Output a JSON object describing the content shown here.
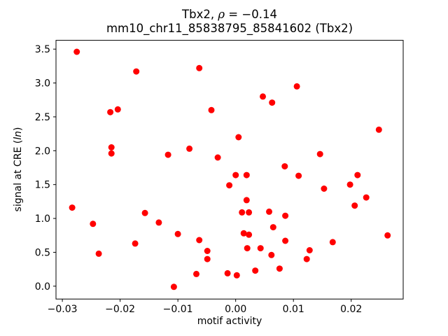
{
  "figure": {
    "title": {
      "full": "Tbx2, ρ = −0.14",
      "prefix": "Tbx2, ",
      "rho_symbol": "ρ",
      "suffix": " = −0.14",
      "subtitle": "mm10_chr11_85838795_85841602 (Tbx2)"
    },
    "x_axis": {
      "label": "motif activity",
      "tick_labels": [
        "−0.03",
        "−0.02",
        "−0.01",
        "0.00",
        "0.01",
        "0.02"
      ]
    },
    "y_axis": {
      "label_full": "signal at CRE (ln)",
      "label_prefix": "signal at CRE (",
      "label_italic": "ln",
      "label_suffix": ")",
      "tick_labels": [
        "0.0",
        "0.5",
        "1.0",
        "1.5",
        "2.0",
        "2.5",
        "3.0",
        "3.5"
      ]
    },
    "colors": {
      "marker": "#ff0000",
      "text": "#000000",
      "spine": "#000000",
      "background": "#ffffff"
    }
  },
  "chart_data": {
    "type": "scatter",
    "title": "Tbx2, ρ = −0.14",
    "subtitle": "mm10_chr11_85838795_85841602 (Tbx2)",
    "xlabel": "motif activity",
    "ylabel": "signal at CRE (ln)",
    "grid": false,
    "legend": "none",
    "marker_color": "#ff0000",
    "marker_radius_px": 4.5,
    "xlim": [
      -0.0311,
      0.029
    ],
    "ylim": [
      -0.19,
      3.63
    ],
    "x_tick_values": [
      -0.03,
      -0.02,
      -0.01,
      0.0,
      0.01,
      0.02
    ],
    "y_tick_values": [
      0.0,
      0.5,
      1.0,
      1.5,
      2.0,
      2.5,
      3.0,
      3.5
    ],
    "points": [
      [
        -0.0275,
        3.46
      ],
      [
        -0.0172,
        3.17
      ],
      [
        -0.0063,
        3.22
      ],
      [
        -0.0217,
        2.57
      ],
      [
        -0.0204,
        2.61
      ],
      [
        -0.0042,
        2.6
      ],
      [
        -0.0215,
        2.05
      ],
      [
        -0.0215,
        1.96
      ],
      [
        -0.0117,
        1.94
      ],
      [
        -0.008,
        2.03
      ],
      [
        -0.0031,
        1.9
      ],
      [
        0.0106,
        2.95
      ],
      [
        0.0047,
        2.8
      ],
      [
        0.0063,
        2.71
      ],
      [
        0.0248,
        2.31
      ],
      [
        0.0005,
        2.2
      ],
      [
        0.0146,
        1.95
      ],
      [
        0.0085,
        1.77
      ],
      [
        -0.0011,
        1.49
      ],
      [
        -0.0283,
        1.16
      ],
      [
        -0.0247,
        0.92
      ],
      [
        -0.0157,
        1.08
      ],
      [
        -0.0133,
        0.94
      ],
      [
        -0.01,
        0.77
      ],
      [
        -0.0174,
        0.63
      ],
      [
        -0.0237,
        0.48
      ],
      [
        -0.0063,
        0.68
      ],
      [
        -0.0049,
        0.52
      ],
      [
        -0.0049,
        0.4
      ],
      [
        -0.0068,
        0.18
      ],
      [
        -0.0014,
        0.19
      ],
      [
        0.0002,
        0.16
      ],
      [
        -0.0107,
        -0.01
      ],
      [
        0.0,
        1.64
      ],
      [
        0.0019,
        1.64
      ],
      [
        0.0109,
        1.63
      ],
      [
        0.0211,
        1.64
      ],
      [
        0.0198,
        1.5
      ],
      [
        0.0153,
        1.44
      ],
      [
        0.0226,
        1.31
      ],
      [
        0.0206,
        1.19
      ],
      [
        0.0019,
        1.27
      ],
      [
        0.0011,
        1.09
      ],
      [
        0.0023,
        1.09
      ],
      [
        0.0058,
        1.1
      ],
      [
        0.0086,
        1.04
      ],
      [
        0.0065,
        0.87
      ],
      [
        0.0014,
        0.78
      ],
      [
        0.0023,
        0.76
      ],
      [
        0.0086,
        0.67
      ],
      [
        0.0168,
        0.65
      ],
      [
        0.0263,
        0.75
      ],
      [
        0.002,
        0.56
      ],
      [
        0.0043,
        0.56
      ],
      [
        0.0128,
        0.53
      ],
      [
        0.0062,
        0.46
      ],
      [
        0.0123,
        0.4
      ],
      [
        0.0034,
        0.23
      ],
      [
        0.0076,
        0.26
      ]
    ]
  }
}
